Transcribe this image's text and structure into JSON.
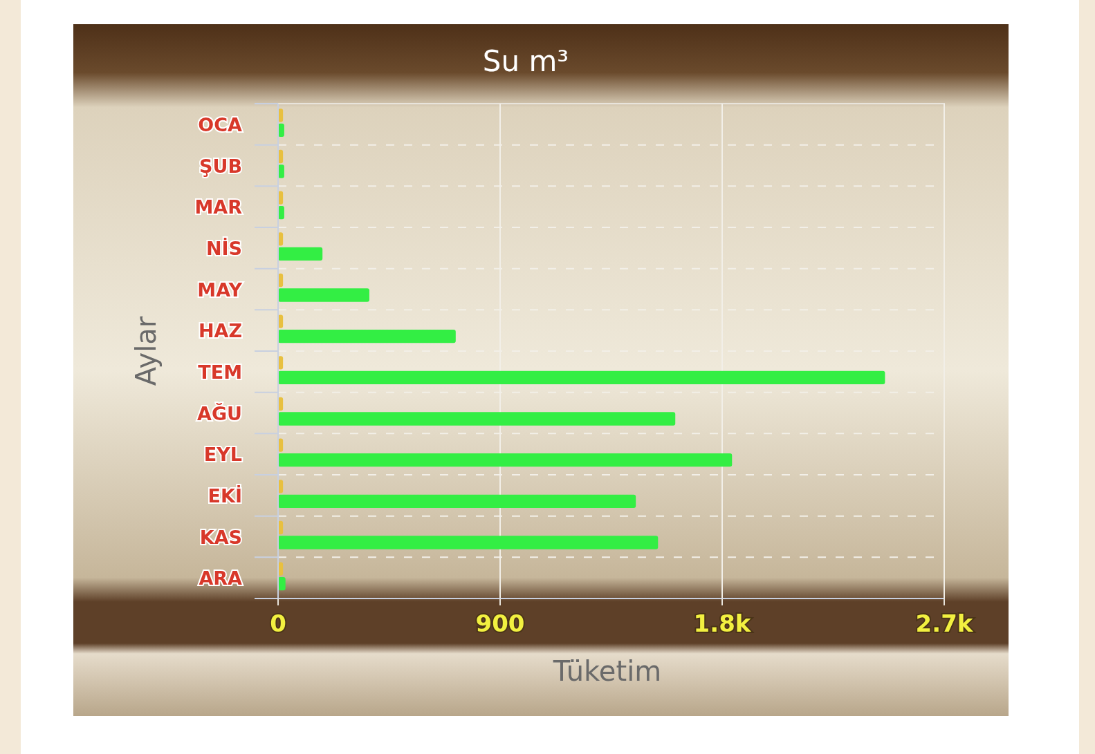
{
  "chart_data": {
    "type": "bar",
    "orientation": "horizontal",
    "title": "Su m³",
    "xlabel": "Tüketim",
    "ylabel": "Aylar",
    "categories": [
      "OCA",
      "ŞUB",
      "MAR",
      "NİS",
      "MAY",
      "HAZ",
      "TEM",
      "AĞU",
      "EYL",
      "EKİ",
      "KAS",
      "ARA"
    ],
    "series": [
      {
        "color": "#e8c040",
        "values": [
          20,
          20,
          20,
          20,
          20,
          20,
          20,
          20,
          20,
          20,
          20,
          20
        ]
      },
      {
        "color": "#33ee44",
        "values": [
          25,
          25,
          25,
          180,
          370,
          720,
          2460,
          1610,
          1840,
          1450,
          1540,
          30
        ]
      }
    ],
    "xlim": [
      0,
      2700
    ],
    "xticks": [
      0,
      900,
      {
        "value": 1800,
        "label": "1.8k"
      },
      {
        "value": 2700,
        "label": "2.7k"
      }
    ],
    "grid": true
  }
}
